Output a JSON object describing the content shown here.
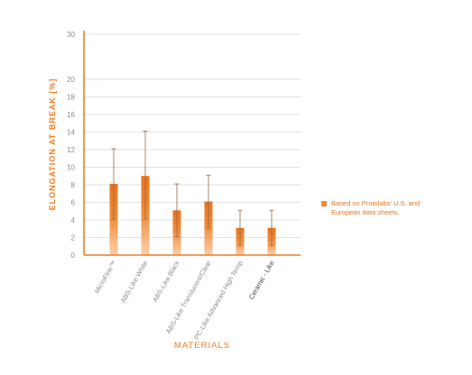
{
  "chart_data": {
    "type": "bar",
    "categories": [
      "MicroFine™",
      "ABS-Like White",
      "ABS-Like Black",
      "ABS-Like Translucent/Clear",
      "PC-Like Advanced High Temp",
      "Ceramic - Like"
    ],
    "series": [
      {
        "values": [
          8.1,
          9.0,
          5.1,
          6.1,
          3.1,
          3.1
        ],
        "error_low": [
          4.1,
          4.1,
          2.1,
          3.1,
          1.1,
          1.1
        ],
        "error_high": [
          12.1,
          14.1,
          8.1,
          9.1,
          5.1,
          5.1
        ]
      }
    ],
    "xlabel": "MATERIALS",
    "ylabel": "ELONGATION AT BREAK [%]",
    "y_ticks": [
      0,
      2,
      4,
      6,
      8,
      10,
      12,
      14,
      16,
      18,
      20,
      30
    ],
    "ylim": [
      0,
      30
    ],
    "axis_break_between": [
      20,
      30
    ],
    "grid": true,
    "legend": {
      "position": "right",
      "label": "Based on Protolabs' U.S. and European data sheets."
    },
    "colors": {
      "bar_top": "#e8741e",
      "bar_bottom": "#fbd0ab",
      "axis": "#ee7d22",
      "grid": "#d8d8d8",
      "error_bar": "#8a6a55",
      "tick_label": "#8c8c8c",
      "last_category_label": "#444444"
    }
  }
}
